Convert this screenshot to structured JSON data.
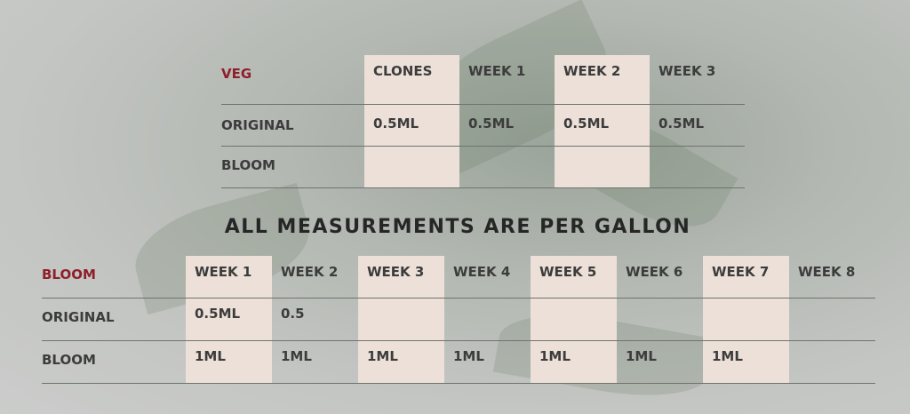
{
  "veg": {
    "title": "VEG",
    "columns": [
      "CLONES",
      "WEEK 1",
      "WEEK 2",
      "WEEK 3"
    ],
    "rows": [
      {
        "label": "ORIGINAL",
        "values": [
          "0.5ML",
          "0.5ML",
          "0.5ML",
          "0.5ML"
        ]
      },
      {
        "label": "BLOOM",
        "values": [
          "",
          "",
          "",
          ""
        ]
      }
    ]
  },
  "banner": "ALL MEASUREMENTS ARE PER GALLON",
  "bloom": {
    "title": "BLOOM",
    "columns": [
      "WEEK 1",
      "WEEK 2",
      "WEEK 3",
      "WEEK 4",
      "WEEK 5",
      "WEEK 6",
      "WEEK 7",
      "WEEK 8"
    ],
    "rows": [
      {
        "label": "ORIGINAL",
        "values": [
          "0.5ML",
          "0.5",
          "",
          "",
          "",
          "",
          "",
          ""
        ]
      },
      {
        "label": "BLOOM",
        "values": [
          "1ML",
          "1ML",
          "1ML",
          "1ML",
          "1ML",
          "1ML",
          "1ML",
          ""
        ]
      }
    ]
  },
  "colors": {
    "title": "#8f1f2a",
    "highlight": "#ece0d9",
    "text": "#3c3c3c"
  }
}
